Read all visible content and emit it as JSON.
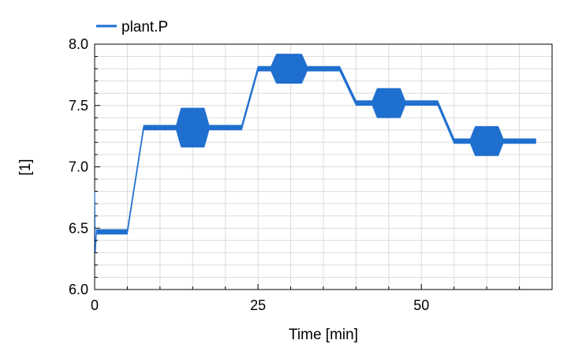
{
  "chart_data": {
    "type": "line",
    "xlabel": "Time [min]",
    "ylabel": "[1]",
    "xlim": [
      0,
      70
    ],
    "ylim": [
      6.0,
      8.0
    ],
    "x_ticks": [
      0,
      25,
      50
    ],
    "x_tick_labels": [
      "0",
      "25",
      "50"
    ],
    "y_ticks": [
      6.0,
      6.5,
      7.0,
      7.5,
      8.0
    ],
    "y_tick_labels": [
      "6.0",
      "6.5",
      "7.0",
      "7.5",
      "8.0"
    ],
    "grid": true,
    "legend_position": "top-left",
    "colors": {
      "line": "#1f6fcf",
      "grid": "#dcdcdc",
      "axis": "#000000"
    },
    "series": [
      {
        "name": "plant.P",
        "x": [
          0,
          0.1,
          0.3,
          5,
          7.5,
          13,
          17,
          22.5,
          25,
          27,
          33,
          37.5,
          40,
          41,
          46,
          52.5,
          55,
          57,
          63,
          67.5
        ],
        "y": [
          6.8,
          6.3,
          6.47,
          6.47,
          7.32,
          7.32,
          7.32,
          7.32,
          7.8,
          7.8,
          7.8,
          7.8,
          7.52,
          7.52,
          7.52,
          7.52,
          7.21,
          7.21,
          7.21,
          7.21
        ],
        "oscillation_bands": [
          {
            "x": [
              12.5,
              17.5
            ],
            "center": 7.32,
            "amplitude": 0.14
          },
          {
            "x": [
              27,
              32.5
            ],
            "center": 7.8,
            "amplitude": 0.1
          },
          {
            "x": [
              42.5,
              47.5
            ],
            "center": 7.52,
            "amplitude": 0.1
          },
          {
            "x": [
              57.5,
              62.5
            ],
            "center": 7.21,
            "amplitude": 0.1
          }
        ]
      }
    ]
  }
}
